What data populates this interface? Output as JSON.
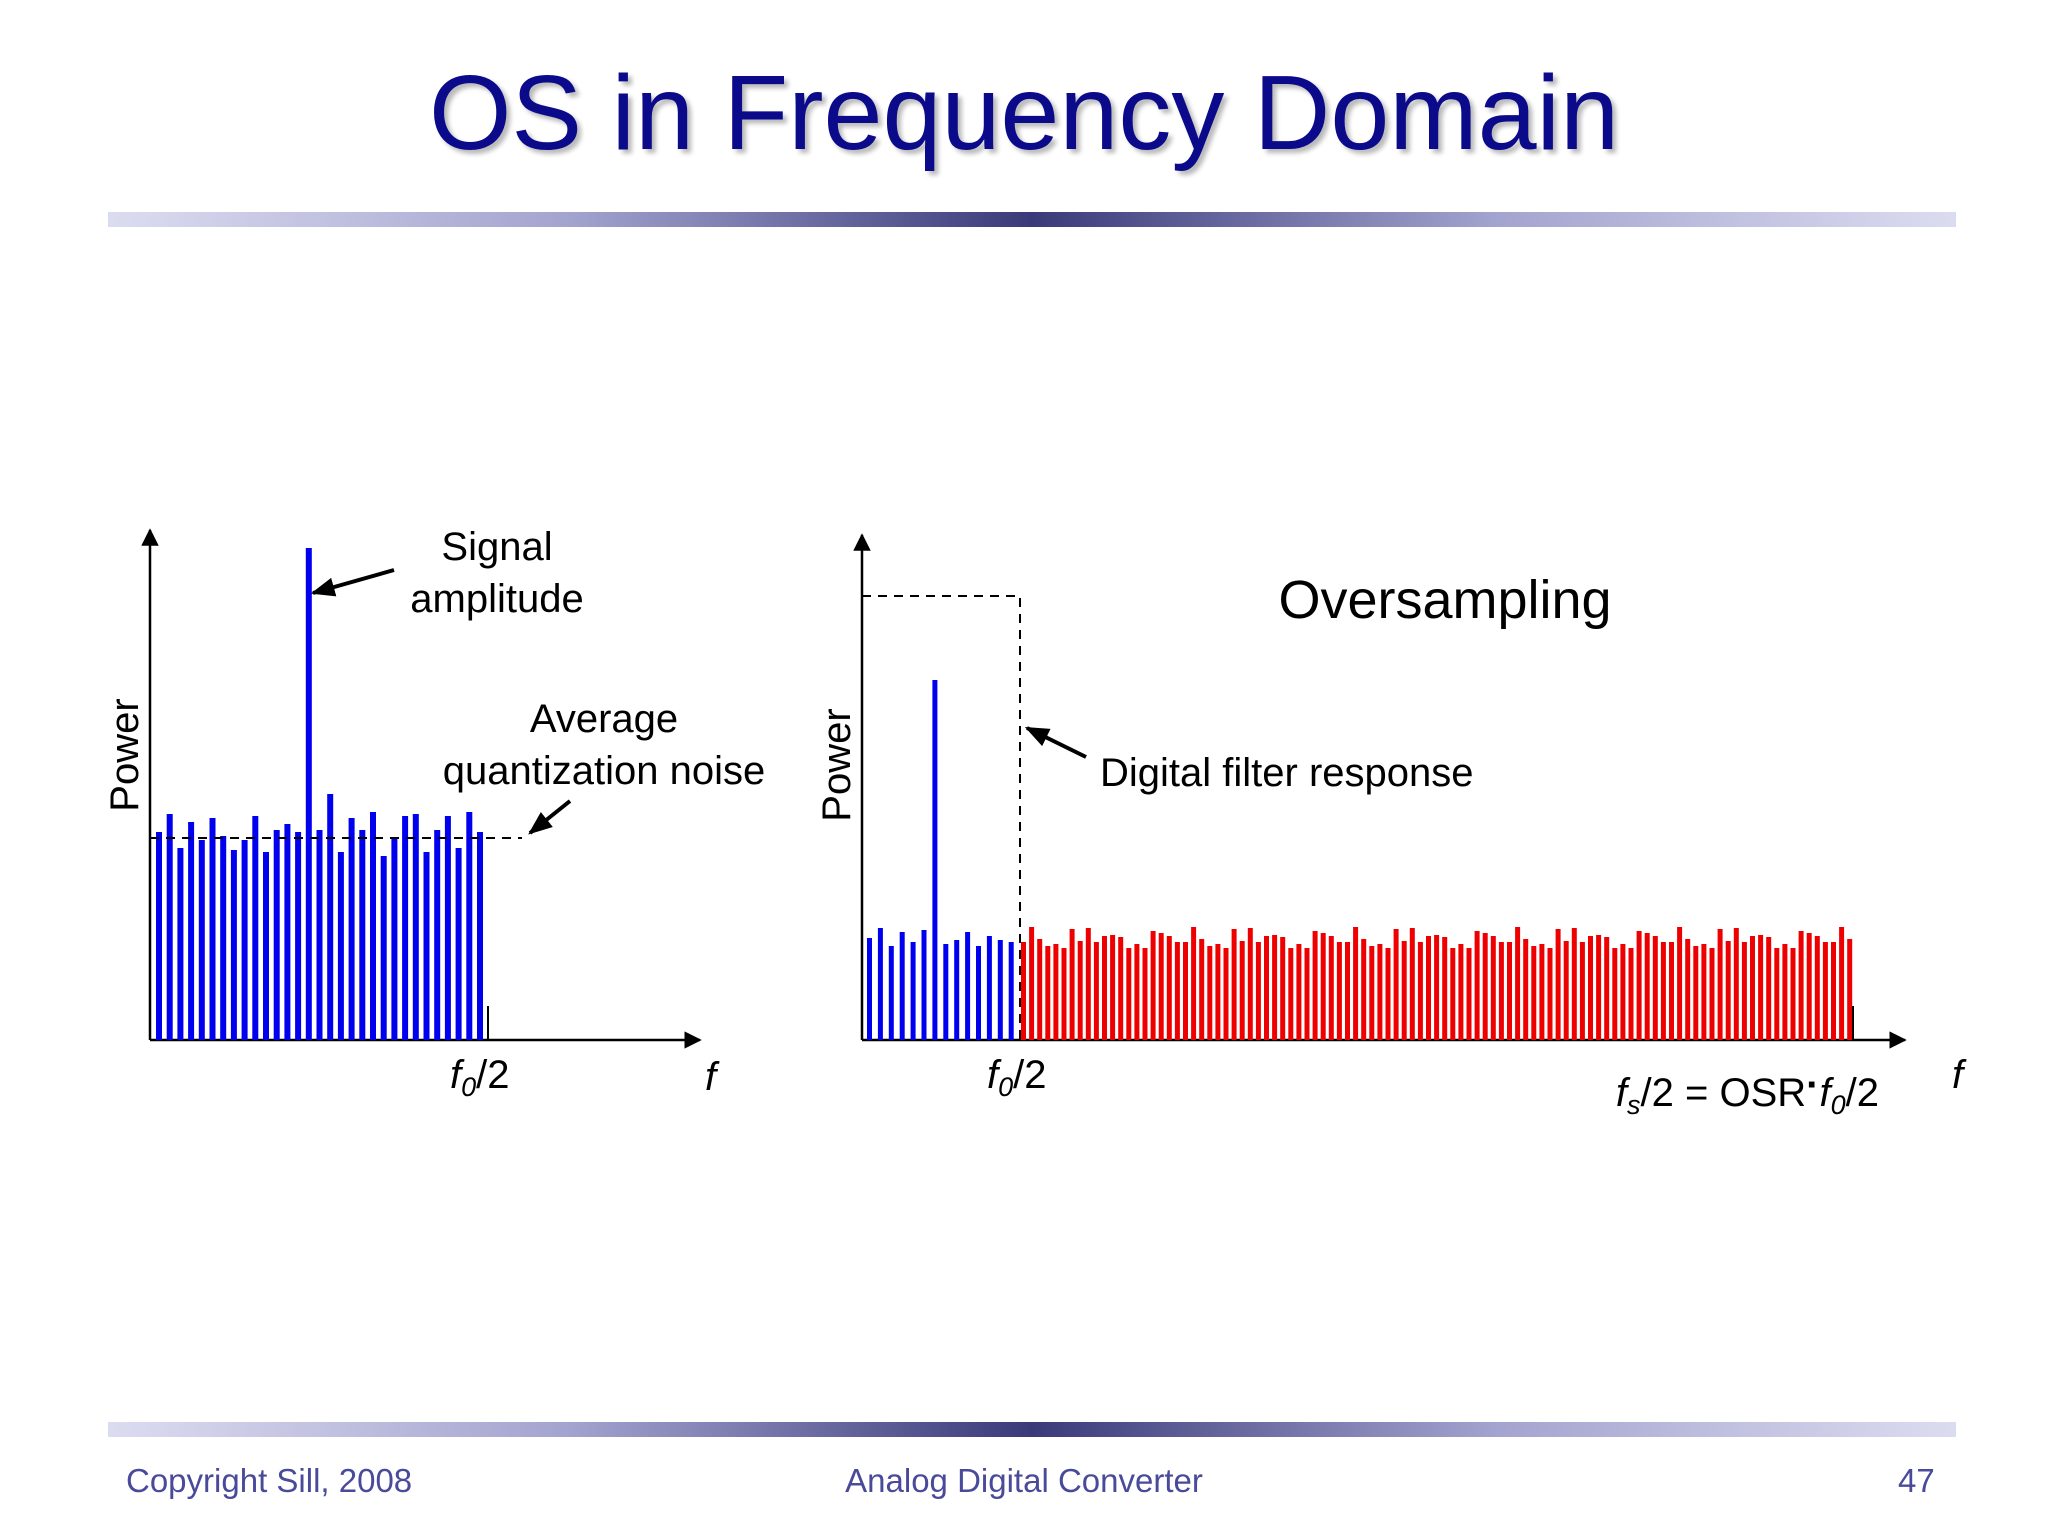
{
  "slide": {
    "title": "OS in Frequency Domain",
    "footer_left": "Copyright Sill, 2008",
    "footer_center": "Analog Digital Converter",
    "page_number": "47"
  },
  "left_plot": {
    "y_axis_label": "Power",
    "x_axis_label": "f",
    "f0_tick": {
      "base": "f",
      "sub": "0",
      "rest": "/2"
    },
    "signal_annotation": [
      "Signal",
      "amplitude"
    ],
    "noise_annotation": [
      "Average",
      "quantization noise"
    ]
  },
  "right_plot": {
    "y_axis_label": "Power",
    "x_axis_label": "f",
    "heading": "Oversampling",
    "filter_annotation": "Digital filter response",
    "f0_tick": {
      "base": "f",
      "sub": "0",
      "rest": "/2"
    },
    "fs_tick": {
      "base": "f",
      "sub": "s",
      "mid": "/2 = OSR",
      "dot": "·",
      "base2": "f",
      "sub2": "0",
      "rest": "/2"
    }
  },
  "colors": {
    "title": "#0a0a8a",
    "footer": "#4a4a9a",
    "inband_bars": "#0000ee",
    "outband_bars": "#ee0000"
  }
}
